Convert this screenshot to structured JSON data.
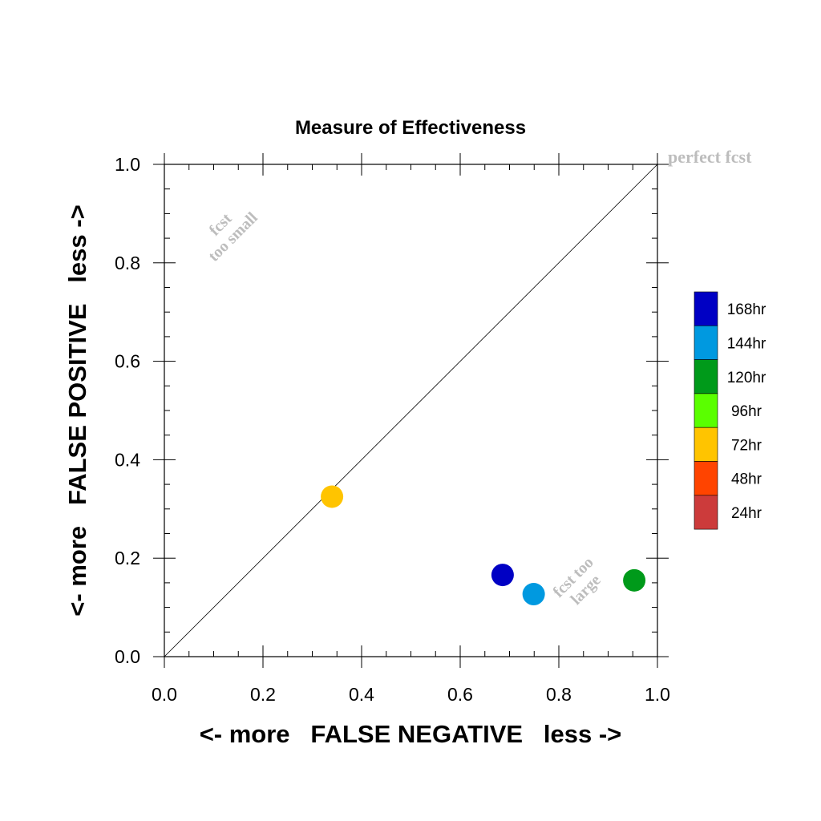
{
  "chart_data": {
    "type": "scatter",
    "title": "Measure of Effectiveness",
    "xlabel": "<- more   FALSE NEGATIVE   less ->",
    "ylabel": "<- more   FALSE POSITIVE   less ->",
    "xlim": [
      0.0,
      1.0
    ],
    "ylim": [
      0.0,
      1.0
    ],
    "xticks": [
      "0.0",
      "0.2",
      "0.4",
      "0.6",
      "0.8",
      "1.0"
    ],
    "yticks": [
      "0.0",
      "0.2",
      "0.4",
      "0.6",
      "0.8",
      "1.0"
    ],
    "grid": false,
    "diagonal_reference_line": true,
    "annotations": {
      "perfect": "perfect fcst",
      "too_small": [
        "fcst",
        "too small"
      ],
      "too_large": [
        "fcst too",
        "large"
      ]
    },
    "legend": {
      "placement": "right",
      "entries": [
        {
          "label": "168hr",
          "color": "#0000c4"
        },
        {
          "label": "144hr",
          "color": "#0099e0"
        },
        {
          "label": "120hr",
          "color": "#009a1a"
        },
        {
          "label": "96hr",
          "color": "#5aff00"
        },
        {
          "label": "72hr",
          "color": "#ffc400"
        },
        {
          "label": "48hr",
          "color": "#ff4400"
        },
        {
          "label": "24hr",
          "color": "#cc3b3b"
        }
      ]
    },
    "points": [
      {
        "series": "72hr",
        "x": 0.34,
        "y": 0.325,
        "color": "#ffc400"
      },
      {
        "series": "168hr",
        "x": 0.686,
        "y": 0.166,
        "color": "#0000c4"
      },
      {
        "series": "144hr",
        "x": 0.749,
        "y": 0.127,
        "color": "#0099e0"
      },
      {
        "series": "120hr",
        "x": 0.953,
        "y": 0.155,
        "color": "#009a1a"
      }
    ]
  }
}
